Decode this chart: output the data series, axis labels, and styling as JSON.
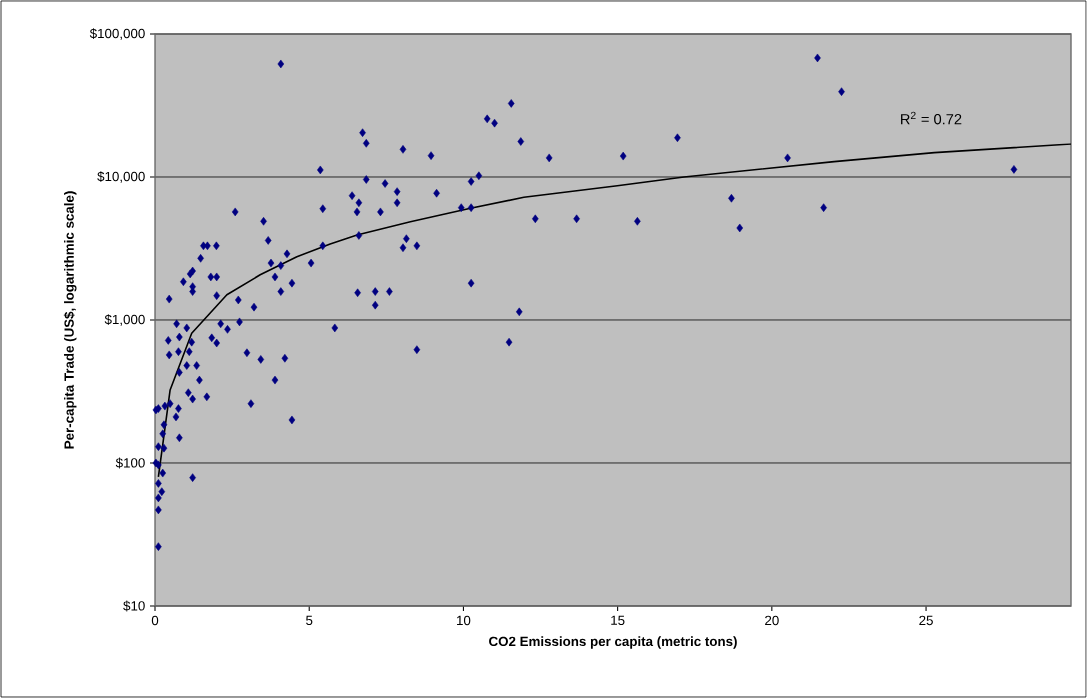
{
  "chart_data": {
    "type": "scatter",
    "xlabel": "CO2 Emissions per capita (metric tons)",
    "ylabel": "Per-capita Trade (US$, logarithmic scale)",
    "log": "y",
    "grid": "y",
    "marker": "diamond",
    "xlim": [
      0,
      29.7
    ],
    "xticks": [
      0,
      5,
      10,
      15,
      20,
      25
    ],
    "ylim": [
      10,
      100000
    ],
    "yticks": [
      {
        "value": 10,
        "label": "$10"
      },
      {
        "value": 100,
        "label": "$100"
      },
      {
        "value": 1000,
        "label": "$1,000"
      },
      {
        "value": 10000,
        "label": "$10,000"
      },
      {
        "value": 100000,
        "label": "$100,000"
      }
    ],
    "annotations": [
      "R$^{2}$ = 0.72"
    ],
    "series": [
      {
        "color": "#000080",
        "x": [
          15.18,
          15.64,
          16.94,
          18.69,
          18.96,
          20.51,
          21.48,
          21.68,
          22.26,
          27.85,
          5.36,
          6.73,
          6.85,
          8.04,
          8.95,
          10.77,
          11.01,
          11.55,
          11.86,
          12.78,
          6.85,
          7.46,
          7.85,
          7.85,
          9.13,
          6.39,
          6.61,
          6.55,
          7.31,
          5.44,
          10.25,
          10.5,
          9.93,
          10.25,
          12.33,
          13.67,
          5.44,
          6.61,
          8.15,
          8.04,
          8.49,
          6.57,
          7.14,
          7.6,
          7.14,
          10.25,
          11.81,
          5.83,
          11.48,
          8.49,
          2.6,
          3.52,
          3.67,
          1.57,
          1.99,
          1.7,
          1.48,
          1.22,
          1.14,
          0.92,
          1.22,
          1.22,
          1.81,
          2.0,
          2.0,
          0.46,
          2.7,
          3.21,
          3.76,
          4.08,
          4.28,
          5.06,
          3.89,
          4.44,
          4.08,
          2.74,
          2.13,
          2.35,
          1.84,
          2.0,
          2.98,
          3.43,
          4.21,
          3.89,
          3.11,
          4.44,
          0.7,
          1.03,
          0.43,
          0.79,
          1.19,
          0.76,
          0.46,
          1.11,
          1.03,
          1.35,
          1.44,
          0.79,
          1.08,
          1.22,
          1.68,
          0.49,
          0.11,
          0.32,
          0.76,
          0.68,
          0.29,
          0.25,
          0.79,
          0.11,
          0.29,
          0.11,
          0.25,
          1.22,
          0.11,
          0.22,
          0.11,
          0.11,
          0.11,
          0.03,
          0.03,
          4.08
        ],
        "values": [
          14000,
          4900,
          18800,
          7100,
          4400,
          13600,
          68000,
          6100,
          39500,
          11300,
          11200,
          20400,
          17200,
          15600,
          14100,
          25500,
          23800,
          32700,
          17700,
          13600,
          9600,
          9000,
          7900,
          6600,
          7700,
          7400,
          6600,
          5700,
          5700,
          6000,
          9300,
          10200,
          6100,
          6100,
          5100,
          5100,
          3300,
          3900,
          3700,
          3200,
          3300,
          1550,
          1580,
          1580,
          1270,
          1810,
          1140,
          880,
          700,
          620,
          5700,
          4900,
          3600,
          3300,
          3300,
          3300,
          2700,
          2200,
          2100,
          1850,
          1710,
          1580,
          2000,
          2000,
          1480,
          1400,
          1380,
          1230,
          2500,
          2400,
          2900,
          2500,
          2000,
          1810,
          1580,
          970,
          940,
          860,
          750,
          690,
          590,
          530,
          540,
          380,
          260,
          200,
          940,
          880,
          720,
          760,
          700,
          600,
          570,
          600,
          480,
          480,
          380,
          430,
          310,
          280,
          290,
          260,
          240,
          250,
          240,
          210,
          185,
          160,
          150,
          130,
          127,
          97,
          85,
          79,
          72,
          63,
          57,
          47,
          26,
          235,
          100,
          61700
        ]
      },
      {
        "type": "line",
        "marker": "none",
        "color": "#000000",
        "x": [
          0.11,
          0.49,
          1.19,
          2.33,
          3.41,
          4.6,
          5.68,
          6.55,
          8.28,
          10.23,
          11.96,
          14.99,
          17.15,
          22.02,
          25.27,
          29.7
        ],
        "values": [
          80,
          324,
          807,
          1500,
          2070,
          2770,
          3400,
          3930,
          4870,
          6040,
          7210,
          8690,
          10000,
          12800,
          14800,
          17000
        ]
      }
    ]
  }
}
